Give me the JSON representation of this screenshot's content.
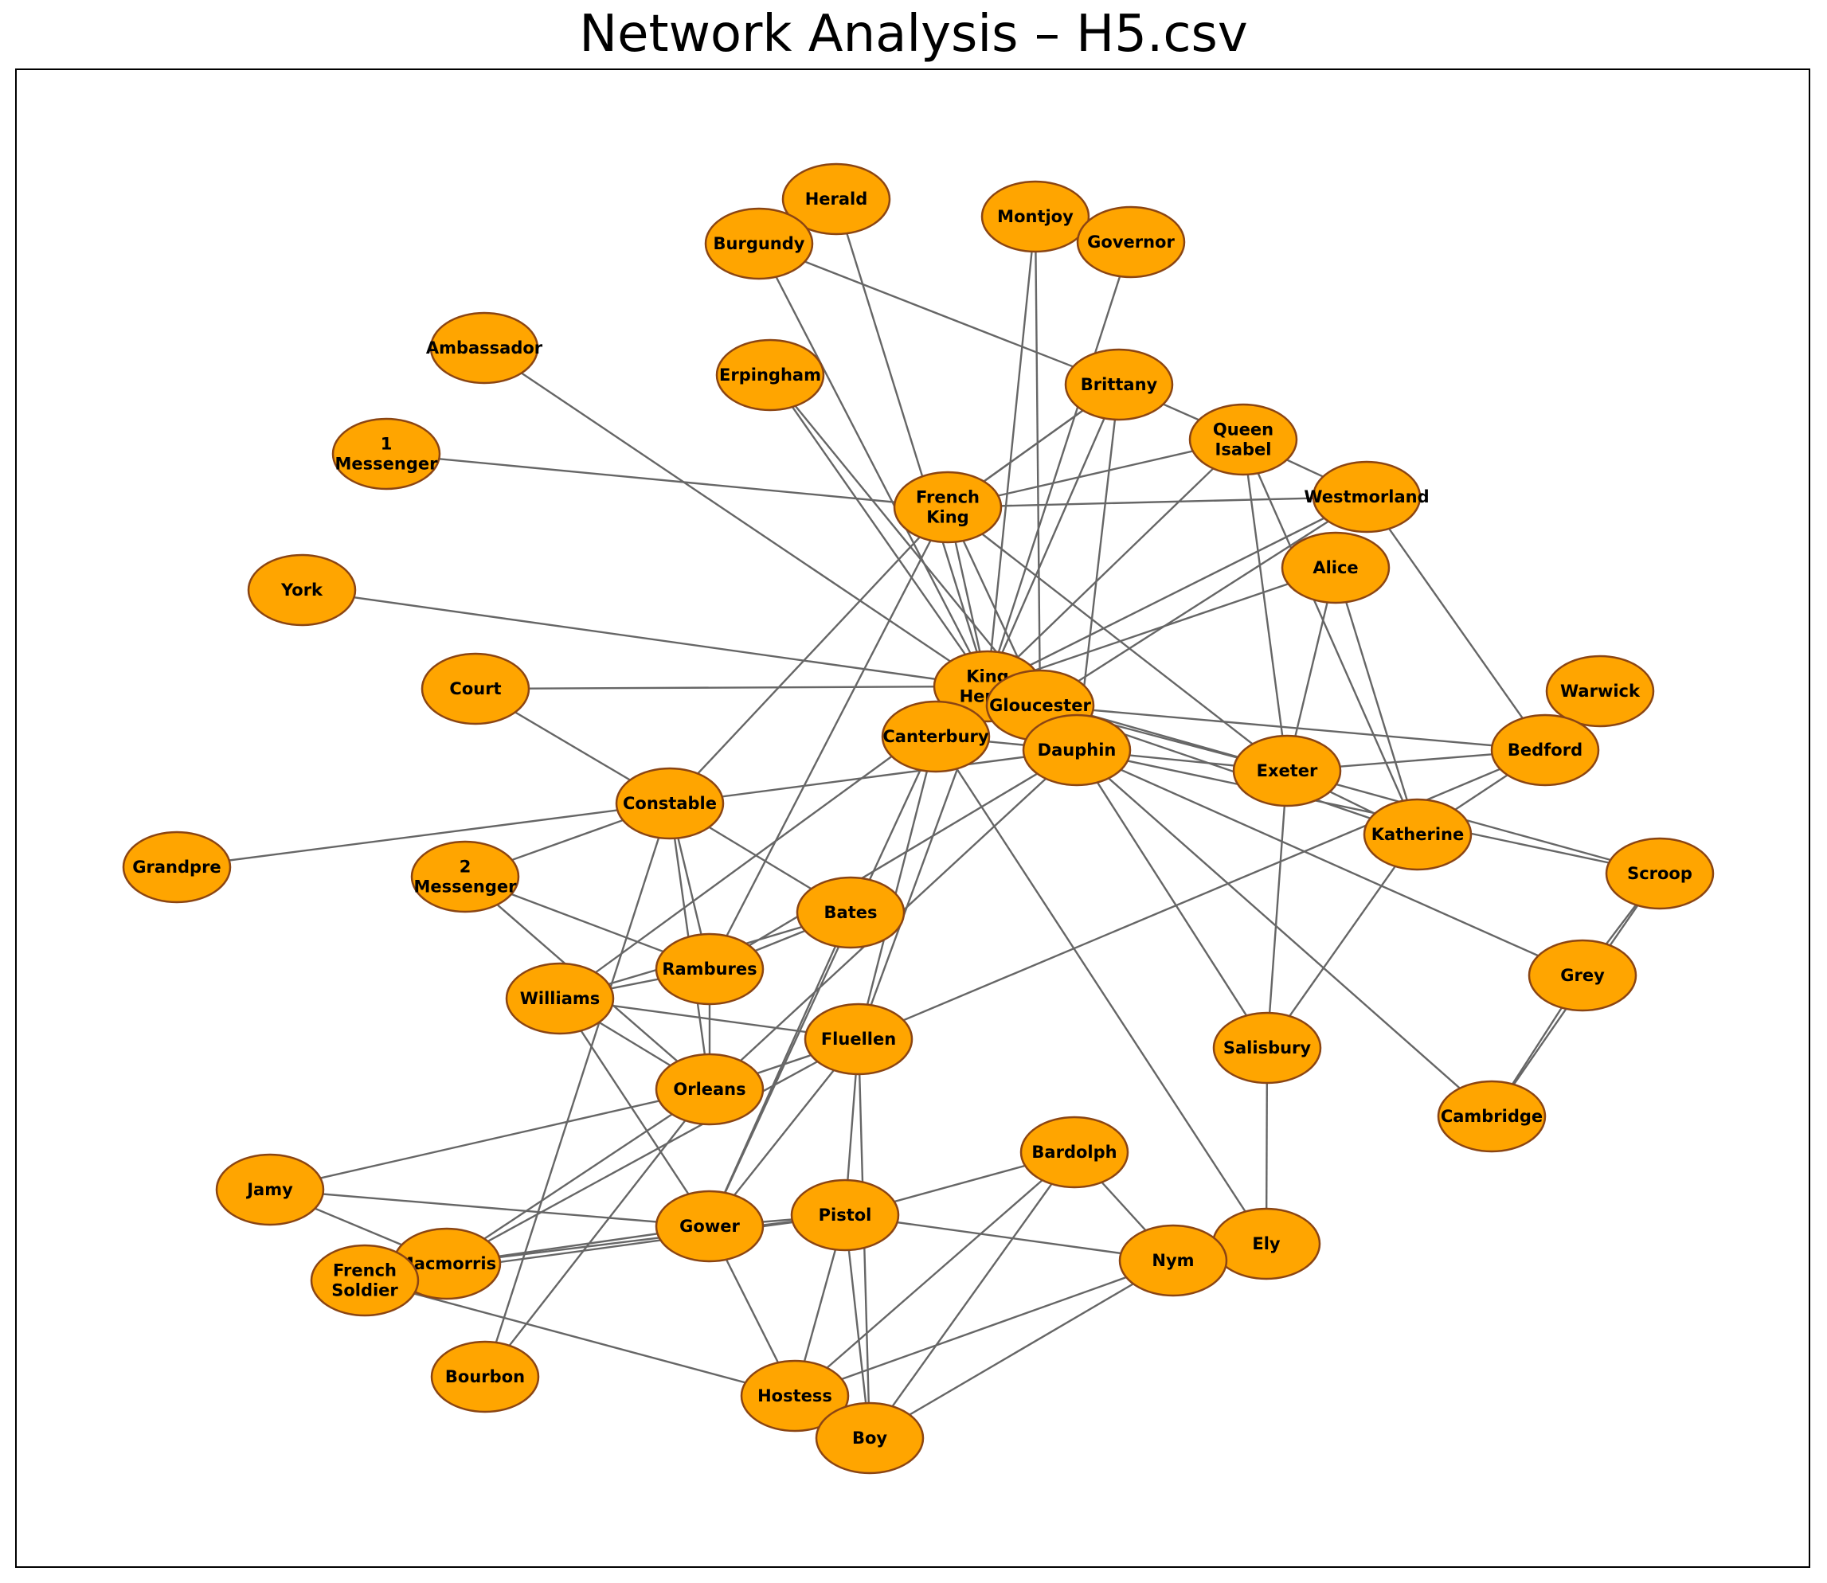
{
  "title": "Network Analysis – H5.csv",
  "colors": {
    "node_fill": "#FFA500",
    "node_stroke": "#8B4513",
    "edge": "#666666",
    "text": "#000000"
  },
  "nodes": [
    {
      "id": "Herald",
      "label": [
        "Herald"
      ]
    },
    {
      "id": "Montjoy",
      "label": [
        "Montjoy"
      ]
    },
    {
      "id": "Burgundy",
      "label": [
        "Burgundy"
      ]
    },
    {
      "id": "Governor",
      "label": [
        "Governor"
      ]
    },
    {
      "id": "Ambassador",
      "label": [
        "Ambassador"
      ]
    },
    {
      "id": "Erpingham",
      "label": [
        "Erpingham"
      ]
    },
    {
      "id": "Brittany",
      "label": [
        "Brittany"
      ]
    },
    {
      "id": "1 Messenger",
      "label": [
        "1",
        "Messenger"
      ]
    },
    {
      "id": "Queen Isabel",
      "label": [
        "Queen",
        "Isabel"
      ]
    },
    {
      "id": "French King",
      "label": [
        "French",
        "King"
      ]
    },
    {
      "id": "Westmorland",
      "label": [
        "Westmorland"
      ]
    },
    {
      "id": "Alice",
      "label": [
        "Alice"
      ]
    },
    {
      "id": "York",
      "label": [
        "York"
      ]
    },
    {
      "id": "Court",
      "label": [
        "Court"
      ]
    },
    {
      "id": "King Henry",
      "label": [
        "King",
        "Henry"
      ]
    },
    {
      "id": "Gloucester",
      "label": [
        "Gloucester"
      ]
    },
    {
      "id": "Warwick",
      "label": [
        "Warwick"
      ]
    },
    {
      "id": "Canterbury",
      "label": [
        "Canterbury"
      ]
    },
    {
      "id": "Dauphin",
      "label": [
        "Dauphin"
      ]
    },
    {
      "id": "Bedford",
      "label": [
        "Bedford"
      ]
    },
    {
      "id": "Exeter",
      "label": [
        "Exeter"
      ]
    },
    {
      "id": "Constable",
      "label": [
        "Constable"
      ]
    },
    {
      "id": "Katherine",
      "label": [
        "Katherine"
      ]
    },
    {
      "id": "Grandpre",
      "label": [
        "Grandpre"
      ]
    },
    {
      "id": "2 Messenger",
      "label": [
        "2",
        "Messenger"
      ]
    },
    {
      "id": "Scroop",
      "label": [
        "Scroop"
      ]
    },
    {
      "id": "Bates",
      "label": [
        "Bates"
      ]
    },
    {
      "id": "Rambures",
      "label": [
        "Rambures"
      ]
    },
    {
      "id": "Williams",
      "label": [
        "Williams"
      ]
    },
    {
      "id": "Grey",
      "label": [
        "Grey"
      ]
    },
    {
      "id": "Fluellen",
      "label": [
        "Fluellen"
      ]
    },
    {
      "id": "Salisbury",
      "label": [
        "Salisbury"
      ]
    },
    {
      "id": "Orleans",
      "label": [
        "Orleans"
      ]
    },
    {
      "id": "Cambridge",
      "label": [
        "Cambridge"
      ]
    },
    {
      "id": "Bardolph",
      "label": [
        "Bardolph"
      ]
    },
    {
      "id": "Jamy",
      "label": [
        "Jamy"
      ]
    },
    {
      "id": "Pistol",
      "label": [
        "Pistol"
      ]
    },
    {
      "id": "Gower",
      "label": [
        "Gower"
      ]
    },
    {
      "id": "Ely",
      "label": [
        "Ely"
      ]
    },
    {
      "id": "Nym",
      "label": [
        "Nym"
      ]
    },
    {
      "id": "Macmorris",
      "label": [
        "Macmorris"
      ]
    },
    {
      "id": "French Soldier",
      "label": [
        "French",
        "Soldier"
      ]
    },
    {
      "id": "Bourbon",
      "label": [
        "Bourbon"
      ]
    },
    {
      "id": "Hostess",
      "label": [
        "Hostess"
      ]
    },
    {
      "id": "Boy",
      "label": [
        "Boy"
      ]
    }
  ],
  "edges": [
    [
      "Ambassador",
      "King Henry"
    ],
    [
      "1 Messenger",
      "French King"
    ],
    [
      "York",
      "King Henry"
    ],
    [
      "Court",
      "King Henry"
    ],
    [
      "Court",
      "Constable"
    ],
    [
      "Grandpre",
      "Constable"
    ],
    [
      "Herald",
      "King Henry"
    ],
    [
      "Burgundy",
      "Brittany"
    ],
    [
      "Burgundy",
      "King Henry"
    ],
    [
      "Montjoy",
      "King Henry"
    ],
    [
      "Montjoy",
      "Gloucester"
    ],
    [
      "Governor",
      "King Henry"
    ],
    [
      "Erpingham",
      "King Henry"
    ],
    [
      "Erpingham",
      "Gloucester"
    ],
    [
      "Brittany",
      "French King"
    ],
    [
      "Brittany",
      "Queen Isabel"
    ],
    [
      "Brittany",
      "King Henry"
    ],
    [
      "Brittany",
      "Dauphin"
    ],
    [
      "Queen Isabel",
      "French King"
    ],
    [
      "Queen Isabel",
      "King Henry"
    ],
    [
      "Queen Isabel",
      "Westmorland"
    ],
    [
      "Queen Isabel",
      "Exeter"
    ],
    [
      "Queen Isabel",
      "Katherine"
    ],
    [
      "French King",
      "King Henry"
    ],
    [
      "French King",
      "Westmorland"
    ],
    [
      "French King",
      "Gloucester"
    ],
    [
      "French King",
      "Exeter"
    ],
    [
      "French King",
      "Constable"
    ],
    [
      "French King",
      "Rambures"
    ],
    [
      "French King",
      "Brittany"
    ],
    [
      "Westmorland",
      "King Henry"
    ],
    [
      "Westmorland",
      "Gloucester"
    ],
    [
      "Westmorland",
      "Bedford"
    ],
    [
      "Alice",
      "King Henry"
    ],
    [
      "Alice",
      "Katherine"
    ],
    [
      "Alice",
      "Exeter"
    ],
    [
      "King Henry",
      "Canterbury"
    ],
    [
      "King Henry",
      "Fluellen"
    ],
    [
      "King Henry",
      "Williams"
    ],
    [
      "King Henry",
      "Exeter"
    ],
    [
      "Gloucester",
      "Bedford"
    ],
    [
      "Gloucester",
      "Exeter"
    ],
    [
      "Gloucester",
      "Katherine"
    ],
    [
      "Canterbury",
      "Dauphin"
    ],
    [
      "Canterbury",
      "Ely"
    ],
    [
      "Canterbury",
      "Fluellen"
    ],
    [
      "Canterbury",
      "Gower"
    ],
    [
      "Dauphin",
      "Constable"
    ],
    [
      "Dauphin",
      "Exeter"
    ],
    [
      "Dauphin",
      "Salisbury"
    ],
    [
      "Dauphin",
      "Cambridge"
    ],
    [
      "Dauphin",
      "Grey"
    ],
    [
      "Dauphin",
      "Scroop"
    ],
    [
      "Dauphin",
      "Rambures"
    ],
    [
      "Dauphin",
      "Orleans"
    ],
    [
      "Bedford",
      "Exeter"
    ],
    [
      "Bedford",
      "Katherine"
    ],
    [
      "Bedford",
      "Fluellen"
    ],
    [
      "Exeter",
      "Salisbury"
    ],
    [
      "Exeter",
      "Katherine"
    ],
    [
      "Exeter",
      "Scroop"
    ],
    [
      "Katherine",
      "Salisbury"
    ],
    [
      "Constable",
      "2 Messenger"
    ],
    [
      "Constable",
      "Rambures"
    ],
    [
      "Constable",
      "Orleans"
    ],
    [
      "Constable",
      "Bates"
    ],
    [
      "Constable",
      "Bourbon"
    ],
    [
      "2 Messenger",
      "Rambures"
    ],
    [
      "2 Messenger",
      "Orleans"
    ],
    [
      "Scroop",
      "Grey"
    ],
    [
      "Scroop",
      "Cambridge"
    ],
    [
      "Grey",
      "Cambridge"
    ],
    [
      "Bates",
      "Rambures"
    ],
    [
      "Bates",
      "Williams"
    ],
    [
      "Bates",
      "Gower"
    ],
    [
      "Rambures",
      "Williams"
    ],
    [
      "Rambures",
      "Orleans"
    ],
    [
      "Williams",
      "Fluellen"
    ],
    [
      "Williams",
      "Orleans"
    ],
    [
      "Williams",
      "Gower"
    ],
    [
      "Fluellen",
      "Orleans"
    ],
    [
      "Fluellen",
      "Gower"
    ],
    [
      "Fluellen",
      "Pistol"
    ],
    [
      "Fluellen",
      "Boy"
    ],
    [
      "Fluellen",
      "Macmorris"
    ],
    [
      "Salisbury",
      "Ely"
    ],
    [
      "Orleans",
      "Jamy"
    ],
    [
      "Orleans",
      "Bourbon"
    ],
    [
      "Orleans",
      "Macmorris"
    ],
    [
      "Jamy",
      "Gower"
    ],
    [
      "Jamy",
      "Macmorris"
    ],
    [
      "Gower",
      "Macmorris"
    ],
    [
      "Gower",
      "Pistol"
    ],
    [
      "Gower",
      "Hostess"
    ],
    [
      "Bardolph",
      "Pistol"
    ],
    [
      "Bardolph",
      "Nym"
    ],
    [
      "Bardolph",
      "Hostess"
    ],
    [
      "Bardolph",
      "Boy"
    ],
    [
      "Pistol",
      "Nym"
    ],
    [
      "Pistol",
      "Hostess"
    ],
    [
      "Pistol",
      "Boy"
    ],
    [
      "Pistol",
      "Macmorris"
    ],
    [
      "Nym",
      "Hostess"
    ],
    [
      "Nym",
      "Boy"
    ],
    [
      "French Soldier",
      "Pistol"
    ],
    [
      "French Soldier",
      "Hostess"
    ]
  ]
}
